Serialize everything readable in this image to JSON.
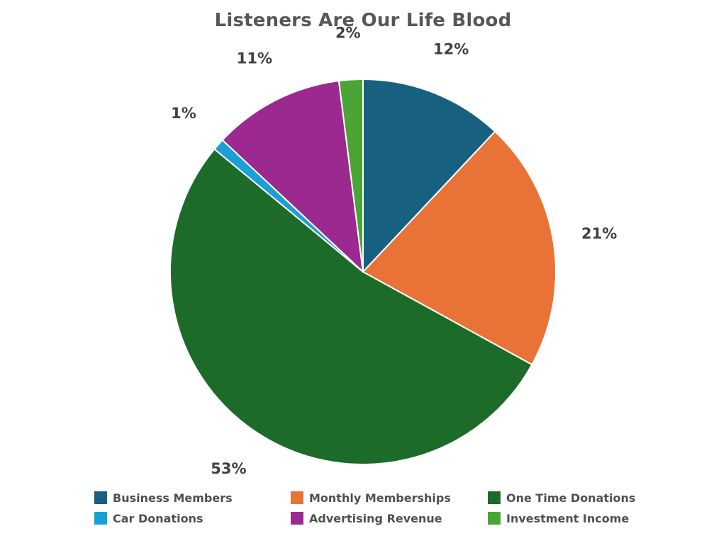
{
  "chart_data": {
    "type": "pie",
    "title": "Listeners Are Our Life Blood",
    "categories": [
      "Business Members",
      "Monthly Memberships",
      "One Time Donations",
      "Car Donations",
      "Advertising Revenue",
      "Investment Income"
    ],
    "values": [
      12,
      21,
      53,
      1,
      11,
      2
    ],
    "data_labels": [
      "12%",
      "21%",
      "53%",
      "1%",
      "11%",
      "2%"
    ],
    "colors": [
      "#17607f",
      "#e97336",
      "#1c6b28",
      "#1a9fd9",
      "#9b2990",
      "#4aa534"
    ],
    "start_angle_deg": 0,
    "direction": "clockwise",
    "legend_position": "bottom",
    "legend_columns": 3
  }
}
